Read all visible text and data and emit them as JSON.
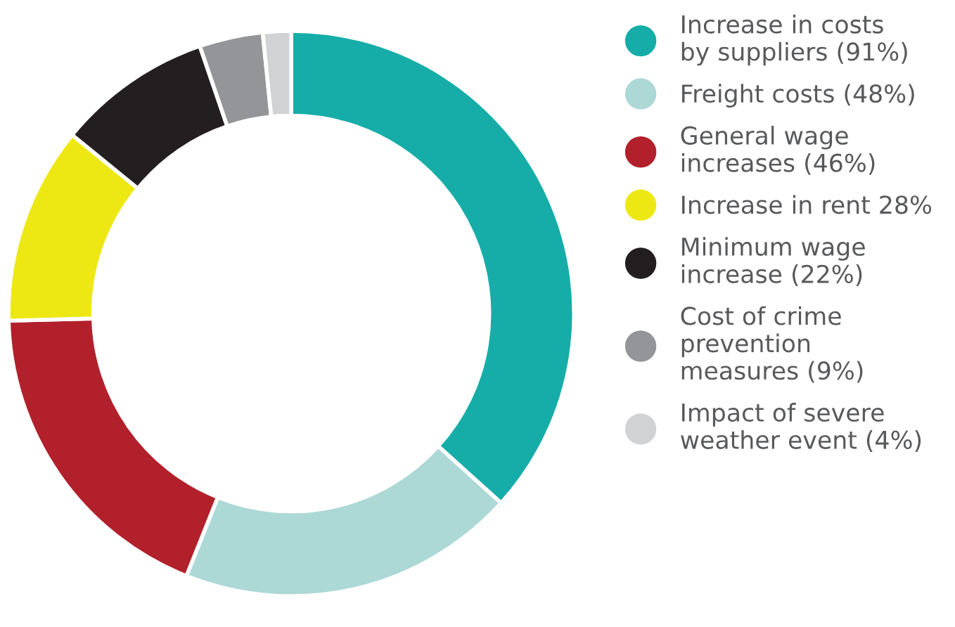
{
  "chart_data": {
    "type": "donut",
    "categories": [
      "Increase in costs\nby suppliers (91%)",
      "Freight costs (48%)",
      "General wage\nincreases (46%)",
      "Increase in rent 28%",
      "Minimum wage\nincrease (22%)",
      "Cost of crime\nprevention\nmeasures (9%)",
      "Impact of severe\nweather event (4%)"
    ],
    "values": [
      91,
      48,
      46,
      28,
      22,
      9,
      4
    ],
    "colors": [
      "#16ada9",
      "#acd8d6",
      "#b1202b",
      "#ede814",
      "#231f20",
      "#939598",
      "#d1d2d4"
    ],
    "legend": "right"
  }
}
